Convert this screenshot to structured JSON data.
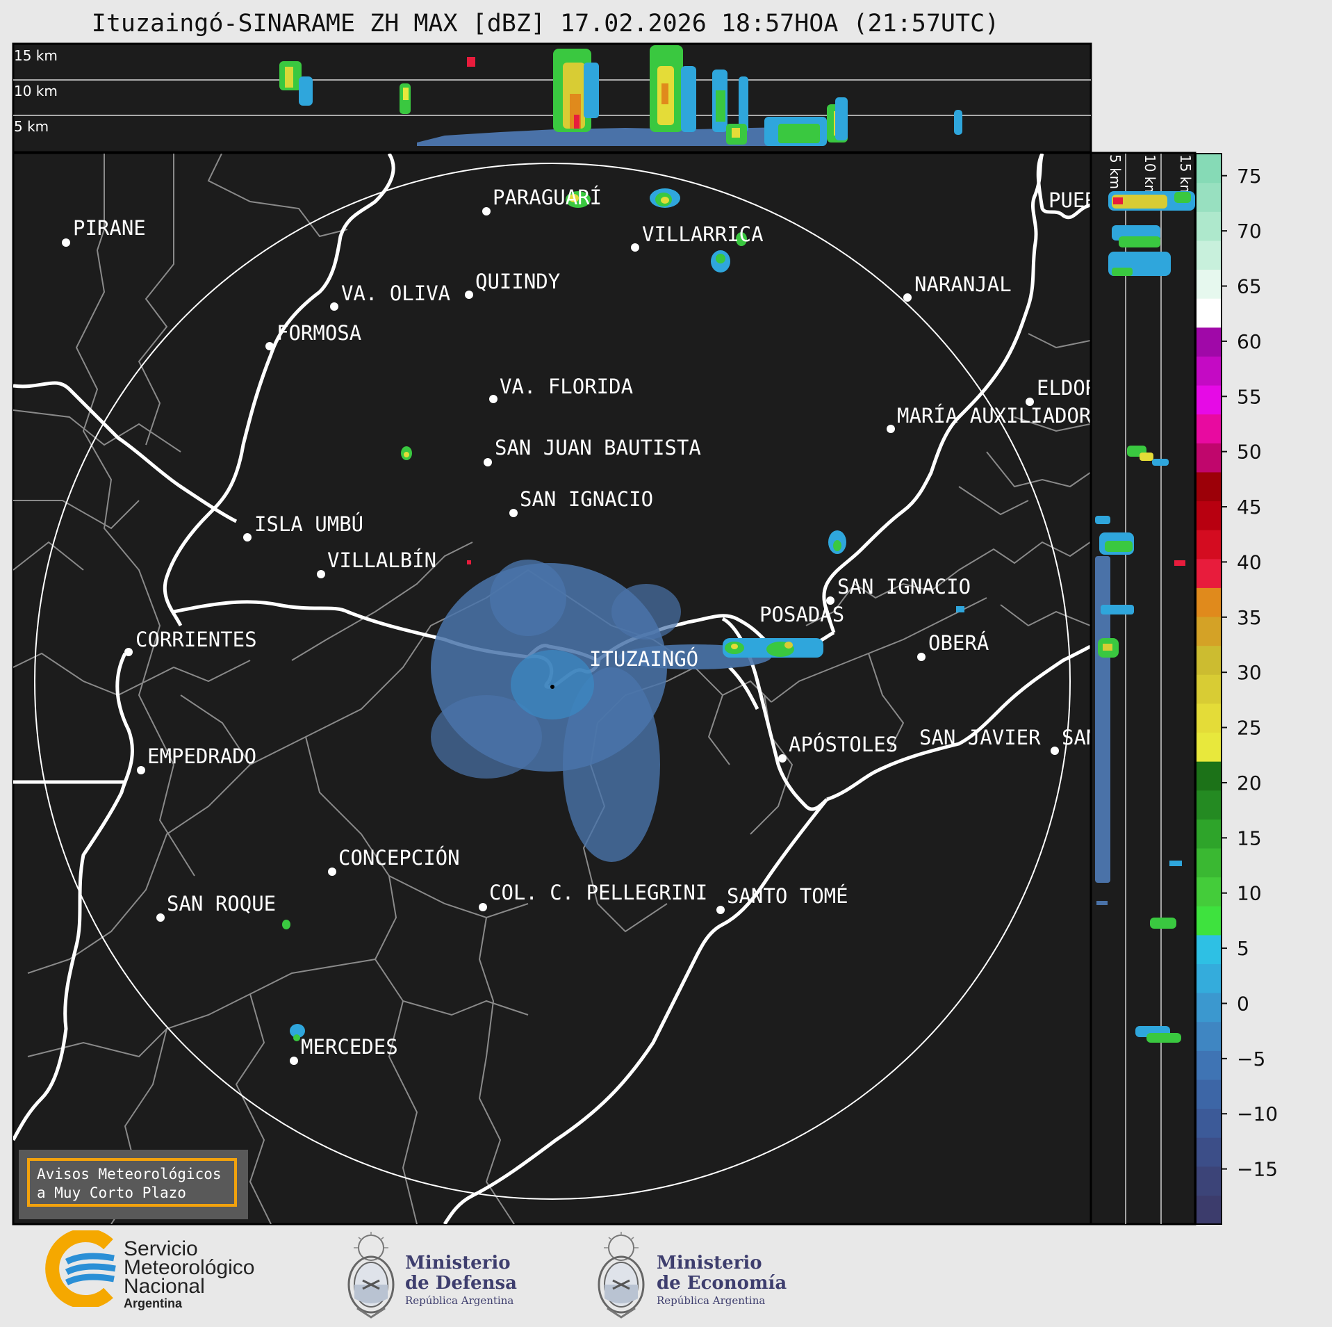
{
  "title": "Ituzaingó-SINARAME ZH MAX [dBZ] 17.02.2026 18:57HOA (21:57UTC)",
  "top_panel_heights": [
    "15 km",
    "10 km",
    "5 km"
  ],
  "side_panel_heights": [
    "5 km",
    "10 km",
    "15 km"
  ],
  "cities": [
    {
      "name": "PIRANE"
    },
    {
      "name": "PARAGUARÍ"
    },
    {
      "name": "VILLARRICA"
    },
    {
      "name": "VA. OLIVA"
    },
    {
      "name": "QUIINDY"
    },
    {
      "name": "FORMOSA"
    },
    {
      "name": "NARANJAL"
    },
    {
      "name": "VA. FLORIDA"
    },
    {
      "name": "ELDORADO"
    },
    {
      "name": "MARÍA AUXILIADORA"
    },
    {
      "name": "SAN JUAN BAUTISTA"
    },
    {
      "name": "SAN IGNACIO"
    },
    {
      "name": "ISLA UMBÚ"
    },
    {
      "name": "VILLALBÍN"
    },
    {
      "name": "SAN IGNACIO"
    },
    {
      "name": "POSADAS"
    },
    {
      "name": "CORRIENTES"
    },
    {
      "name": "ITUZAINGÓ"
    },
    {
      "name": "OBERÁ"
    },
    {
      "name": "EMPEDRADO"
    },
    {
      "name": "APÓSTOLES"
    },
    {
      "name": "SAN JAVIER"
    },
    {
      "name": "SAN"
    },
    {
      "name": "CONCEPCIÓN"
    },
    {
      "name": "COL. C. PELLEGRINI"
    },
    {
      "name": "SANTO TOMÉ"
    },
    {
      "name": "SAN ROQUE"
    },
    {
      "name": "MERCEDES"
    },
    {
      "name": "PUERTO"
    }
  ],
  "colorbar": {
    "ticks": [
      "75",
      "70",
      "65",
      "60",
      "55",
      "50",
      "45",
      "40",
      "35",
      "30",
      "25",
      "20",
      "15",
      "10",
      "5",
      "0",
      "−5",
      "−10",
      "−15"
    ],
    "range": [
      -20,
      77
    ],
    "colors": [
      "#3c3c6c",
      "#3c4478",
      "#3c4e88",
      "#3c5a98",
      "#3d66a6",
      "#3f74b4",
      "#3f86c2",
      "#3b98cf",
      "#34acdc",
      "#2ec0e4",
      "#3ee23e",
      "#44cc3a",
      "#3ab832",
      "#2ea42a",
      "#248a22",
      "#1c7218",
      "#e8e83c",
      "#e4dc38",
      "#d8cc34",
      "#ccbc30",
      "#d4a226",
      "#e08a1c",
      "#e81c3c",
      "#d40c20",
      "#b80010",
      "#9c0008",
      "#c0066c",
      "#e80aa0",
      "#e60ae6",
      "#c40ac4",
      "#a008a8",
      "#ffffff",
      "#e6f8ee",
      "#c8f0dc",
      "#aee8cc",
      "#98e0c0",
      "#86dab6"
    ]
  },
  "aviso": {
    "line1": "Avisos Meteorológicos",
    "line2": "a Muy Corto Plazo"
  },
  "logos": {
    "smn": {
      "line1": "Servicio",
      "line2": "Meteorológico",
      "line3": "Nacional",
      "line4": "Argentina"
    },
    "defensa": {
      "line1": "Ministerio",
      "line2": "de Defensa",
      "line3": "República Argentina"
    },
    "economia": {
      "line1": "Ministerio",
      "line2": "de Economía",
      "line3": "República Argentina"
    }
  },
  "colors": {
    "map_bg": "#1c1c1c",
    "page_bg": "#e8e8e8",
    "aviso_border": "#f2a20d",
    "smn_blue": "#2a8fd6",
    "smn_yellow": "#f5a800"
  }
}
